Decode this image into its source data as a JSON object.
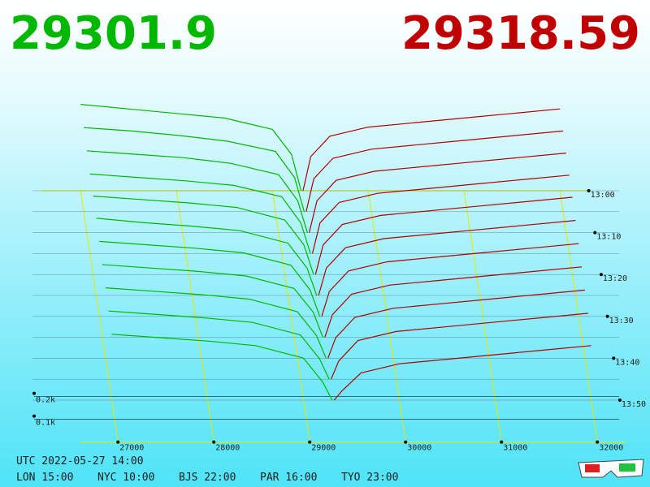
{
  "chart_data": {
    "type": "depth3d",
    "bid_price": 29301.9,
    "ask_price": 29318.59,
    "bid_color": "#00b800",
    "ask_color": "#c00000",
    "xlim": [
      26600,
      32300
    ],
    "xticks": [
      27000,
      28000,
      29000,
      30000,
      31000,
      32000
    ],
    "zlim": [
      0,
      500
    ],
    "zticks": [
      {
        "value": 200,
        "label": "0.2k"
      },
      {
        "value": 100,
        "label": "0.1k"
      }
    ],
    "times": [
      "13:00",
      null,
      "13:10",
      null,
      "13:20",
      null,
      "13:30",
      null,
      "13:40",
      null,
      "13:50"
    ],
    "bids": {
      "color": "#00b800",
      "x": [
        27000,
        27500,
        28000,
        28500,
        29000,
        29200,
        29300
      ],
      "values": [
        [
          380,
          360,
          340,
          320,
          270,
          160,
          0
        ],
        [
          370,
          355,
          335,
          310,
          265,
          150,
          0
        ],
        [
          360,
          345,
          330,
          305,
          255,
          140,
          0
        ],
        [
          350,
          335,
          320,
          300,
          250,
          135,
          0
        ],
        [
          345,
          330,
          315,
          295,
          240,
          130,
          0
        ],
        [
          340,
          320,
          305,
          285,
          230,
          120,
          0
        ],
        [
          330,
          315,
          300,
          280,
          225,
          115,
          0
        ],
        [
          320,
          305,
          290,
          270,
          215,
          110,
          0
        ],
        [
          310,
          295,
          280,
          260,
          205,
          100,
          0
        ],
        [
          300,
          285,
          270,
          250,
          195,
          90,
          0
        ],
        [
          290,
          275,
          260,
          240,
          185,
          80,
          0
        ]
      ]
    },
    "asks": {
      "color": "#b00000",
      "x": [
        29320,
        29400,
        29600,
        30000,
        30500,
        31000,
        31500,
        32000
      ],
      "values": [
        [
          0,
          150,
          240,
          280,
          300,
          320,
          340,
          360
        ],
        [
          0,
          145,
          235,
          275,
          295,
          315,
          335,
          355
        ],
        [
          0,
          140,
          230,
          270,
          290,
          310,
          330,
          350
        ],
        [
          0,
          135,
          225,
          265,
          285,
          305,
          325,
          345
        ],
        [
          0,
          130,
          220,
          260,
          280,
          300,
          320,
          340
        ],
        [
          0,
          120,
          210,
          250,
          270,
          290,
          310,
          330
        ],
        [
          0,
          110,
          200,
          240,
          260,
          280,
          300,
          320
        ],
        [
          0,
          100,
          190,
          230,
          250,
          270,
          290,
          310
        ],
        [
          0,
          90,
          180,
          220,
          240,
          260,
          280,
          300
        ],
        [
          0,
          80,
          170,
          210,
          230,
          250,
          270,
          290
        ],
        [
          0,
          40,
          120,
          160,
          180,
          200,
          220,
          240
        ]
      ]
    },
    "footer": {
      "utc": "UTC 2022-05-27 14:00",
      "clocks": [
        "LON 15:00",
        "NYC 10:00",
        "BJS 22:00",
        "PAR 16:00",
        "TYO 23:00"
      ]
    }
  }
}
